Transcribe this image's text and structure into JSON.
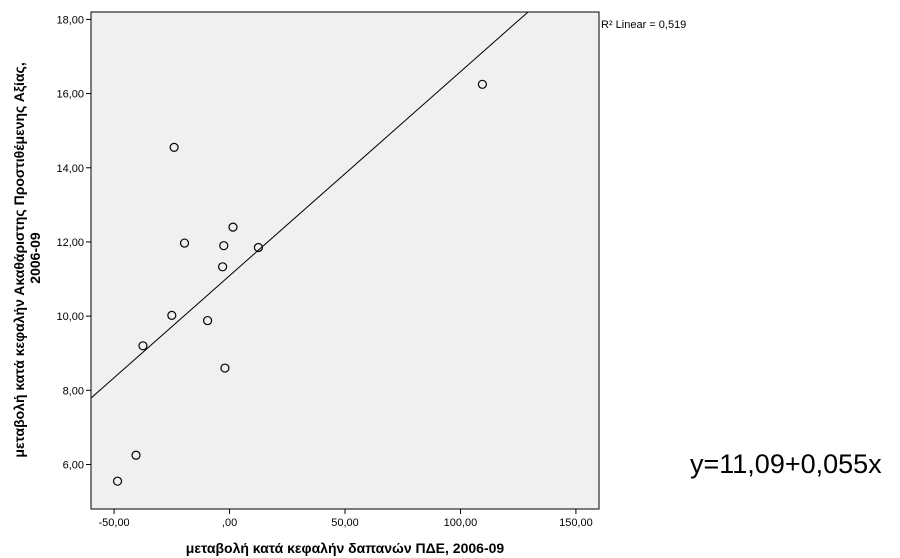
{
  "chart_data": {
    "type": "scatter",
    "xlabel": "μεταβολή κατά κεφαλήν δαπανών ΠΔΕ, 2006-09",
    "ylabel_lines": [
      "μεταβολή κατά κεφαλήν Ακαθάριστης Προστιθέμενης Αξίας,",
      "2006-09"
    ],
    "xlim": [
      -60,
      160
    ],
    "ylim": [
      4.8,
      18.2
    ],
    "x_ticks": [
      -50,
      0,
      50,
      100,
      150
    ],
    "x_tick_labels": [
      "-50,00",
      ",00",
      "50,00",
      "100,00",
      "150,00"
    ],
    "y_ticks": [
      6,
      8,
      10,
      12,
      14,
      16,
      18
    ],
    "y_tick_labels": [
      "6,00",
      "8,00",
      "10,00",
      "12,00",
      "14,00",
      "16,00",
      "18,00"
    ],
    "points": [
      {
        "x": -48.5,
        "y": 5.55
      },
      {
        "x": -40.5,
        "y": 6.25
      },
      {
        "x": -37.5,
        "y": 9.2
      },
      {
        "x": -25,
        "y": 10.02
      },
      {
        "x": -24,
        "y": 14.55
      },
      {
        "x": -19.5,
        "y": 11.97
      },
      {
        "x": -9.5,
        "y": 9.88
      },
      {
        "x": -3,
        "y": 11.33
      },
      {
        "x": -2.5,
        "y": 11.9
      },
      {
        "x": -2,
        "y": 8.6
      },
      {
        "x": 1.5,
        "y": 12.4
      },
      {
        "x": 12.5,
        "y": 11.85
      },
      {
        "x": 109.5,
        "y": 16.25
      }
    ],
    "fit_line": {
      "intercept": 11.09,
      "slope": 0.055,
      "label": "R² Linear = 0,519"
    },
    "grid": false,
    "plot_background": "#f0f0f0"
  },
  "equation_text": "y=11,09+0,055x"
}
